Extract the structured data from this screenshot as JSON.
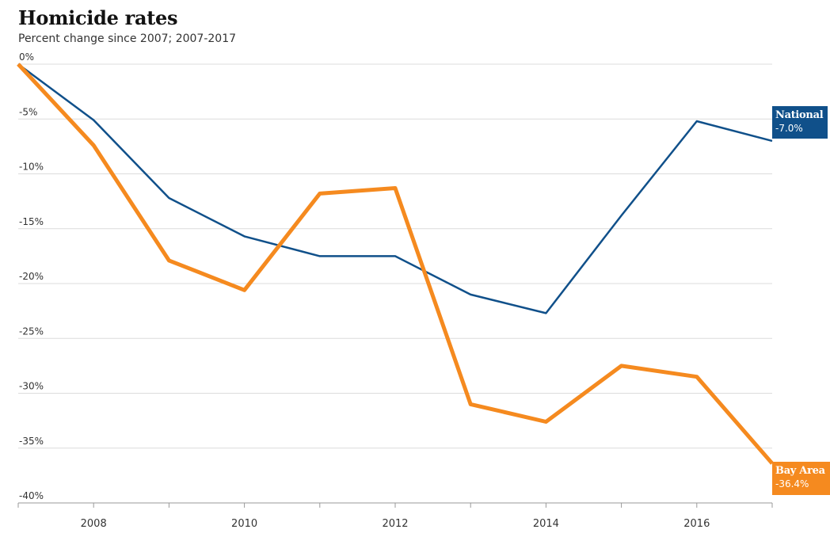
{
  "title": "Homicide rates",
  "subtitle": "Percent change since 2007; 2007-2017",
  "colors": {
    "national": "#10508a",
    "bay_area": "#f58a1f",
    "grid": "#dcdcdc",
    "axis": "#999999"
  },
  "end_labels": {
    "national": {
      "name": "National",
      "value": "-7.0%"
    },
    "bay_area": {
      "name": "Bay Area",
      "value": "-36.4%"
    }
  },
  "chart_data": {
    "type": "line",
    "title": "Homicide rates",
    "subtitle": "Percent change since 2007; 2007-2017",
    "xlabel": "",
    "ylabel": "",
    "x": [
      2007,
      2008,
      2009,
      2010,
      2011,
      2012,
      2013,
      2014,
      2015,
      2016,
      2017
    ],
    "xlim": [
      2007,
      2017
    ],
    "ylim": [
      -40,
      0
    ],
    "y_ticks": [
      0,
      -5,
      -10,
      -15,
      -20,
      -25,
      -30,
      -35,
      -40
    ],
    "y_tick_labels": [
      "0%",
      "-5%",
      "-10%",
      "-15%",
      "-20%",
      "-25%",
      "-30%",
      "-35%",
      "-40%"
    ],
    "x_ticks": [
      2008,
      2010,
      2012,
      2014,
      2016
    ],
    "x_tick_labels": [
      "2008",
      "2010",
      "2012",
      "2014",
      "2016"
    ],
    "grid": true,
    "series": [
      {
        "name": "National",
        "values": [
          0,
          -5.1,
          -12.2,
          -15.7,
          -17.5,
          -17.5,
          -21.0,
          -22.7,
          -13.8,
          -5.2,
          -7.0
        ]
      },
      {
        "name": "Bay Area",
        "values": [
          0,
          -7.4,
          -17.9,
          -20.6,
          -11.8,
          -11.3,
          -31.0,
          -32.6,
          -27.5,
          -28.5,
          -36.4
        ]
      }
    ]
  }
}
